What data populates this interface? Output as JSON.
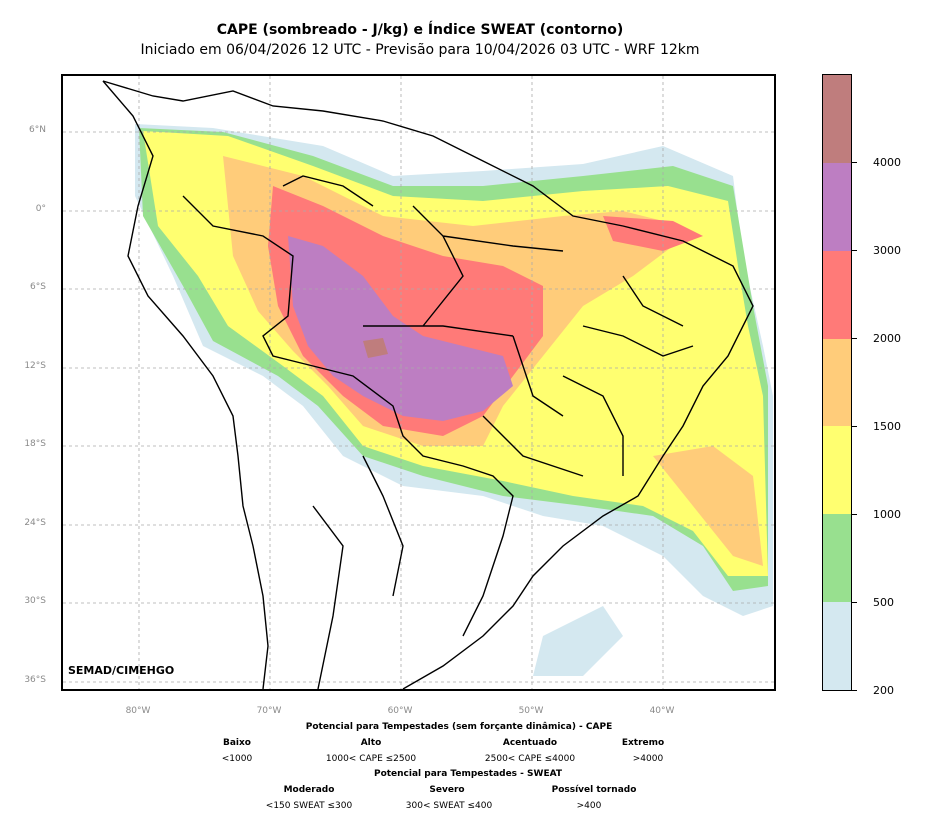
{
  "title": "CAPE (sombreado - J/kg) e Índice SWEAT (contorno)",
  "subtitle": "Iniciado em 06/04/2026 12 UTC - Previsão para 10/04/2026 03 UTC - WRF 12km",
  "credit": "SEMAD/CIMEHGO",
  "lat_labels": [
    "6°N",
    "0°",
    "6°S",
    "12°S",
    "18°S",
    "24°S",
    "30°S",
    "36°S"
  ],
  "lon_labels": [
    "80°W",
    "70°W",
    "60°W",
    "50°W",
    "40°W"
  ],
  "colorbar": {
    "ticks": [
      "200",
      "500",
      "1000",
      "1500",
      "2000",
      "3000",
      "4000"
    ],
    "colors": [
      "#d4e8f0",
      "#98e08f",
      "#ffff70",
      "#ffcc7a",
      "#ff7a78",
      "#bd7ec2",
      "#bf7d7d"
    ]
  },
  "legend": {
    "cape_title": "Potencial para Tempestades (sem forçante dinâmica) - CAPE",
    "cape_items": [
      {
        "label": "Baixo",
        "range": "<1000"
      },
      {
        "label": "Alto",
        "range": "1000< CAPE ≤2500"
      },
      {
        "label": "Acentuado",
        "range": "2500< CAPE ≤4000"
      },
      {
        "label": "Extremo",
        "range": ">4000"
      }
    ],
    "sweat_title": "Potencial para Tempestades - SWEAT",
    "sweat_items": [
      {
        "label": "Moderado",
        "range": "<150 SWEAT ≤300"
      },
      {
        "label": "Severo",
        "range": "300< SWEAT ≤400"
      },
      {
        "label": "Possível tornado",
        "range": ">400"
      }
    ]
  }
}
